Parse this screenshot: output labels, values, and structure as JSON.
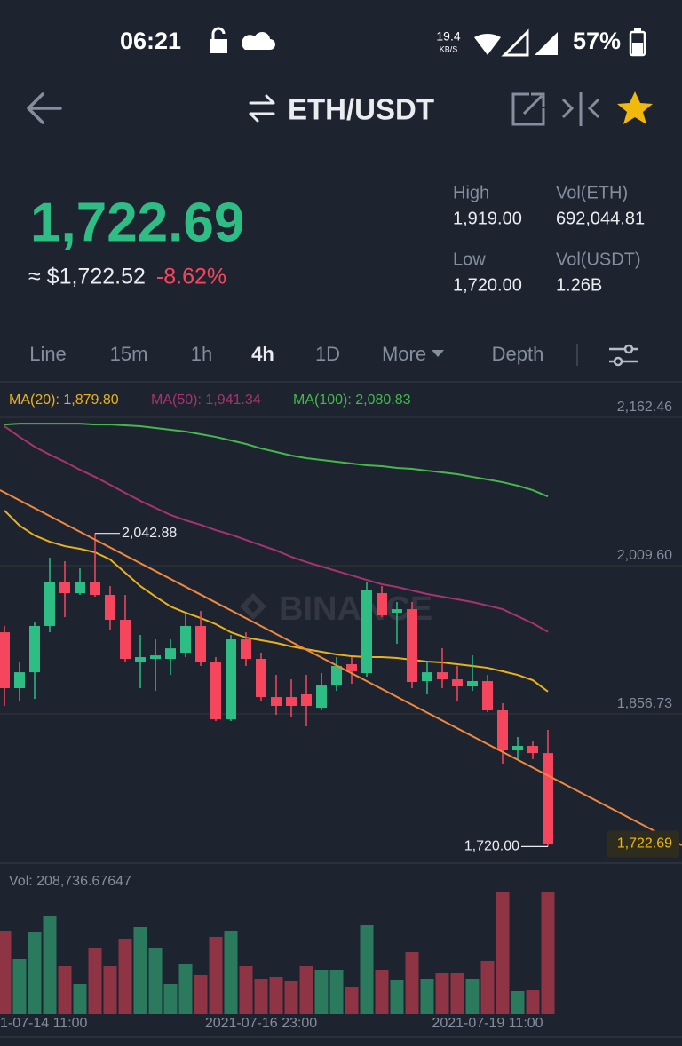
{
  "status_bar": {
    "time": "06:21",
    "net_speed": "19.4",
    "net_unit": "KB/S",
    "battery": "57%"
  },
  "header": {
    "pair": "ETH/USDT"
  },
  "ticker": {
    "last": "1,722.69",
    "usd": "≈ $1,722.52",
    "change": "-8.62%",
    "stats": [
      {
        "label": "High",
        "value": "1,919.00"
      },
      {
        "label": "Vol(ETH)",
        "value": "692,044.81"
      },
      {
        "label": "Low",
        "value": "1,720.00"
      },
      {
        "label": "Vol(USDT)",
        "value": "1.26B"
      }
    ]
  },
  "tabs": [
    "Line",
    "15m",
    "1h",
    "4h",
    "1D",
    "More",
    "Depth"
  ],
  "active_tab": 3,
  "chart_data": {
    "type": "candlestick",
    "watermark": "BINANCE",
    "up_color": "#2ebd85",
    "down_color": "#f6465d",
    "volume_up_color": "#2b7a5e",
    "volume_down_color": "#8f3445",
    "x": [
      null,
      null,
      "1-07-14 11:00",
      null,
      null,
      null,
      null,
      null,
      null,
      null,
      null,
      null,
      null,
      null,
      null,
      null,
      null,
      "2021-07-16 23:00",
      null,
      null,
      null,
      null,
      null,
      null,
      null,
      null,
      null,
      null,
      null,
      null,
      null,
      null,
      "2021-07-19 11:00",
      null,
      null,
      null,
      null
    ],
    "open": [
      1940.9,
      1883.3,
      1899.7,
      1947.4,
      1993.1,
      1981.2,
      1993.1,
      1979.4,
      1953.8,
      1910.7,
      1913.5,
      1913.5,
      1919.9,
      1947.4,
      1910.7,
      1851.2,
      1933.6,
      1913.5,
      1874.1,
      1874.1,
      1876.9,
      1863.1,
      1886.0,
      1908.0,
      1898.8,
      1981.2,
      1961.1,
      1964.7,
      1890.6,
      1899.7,
      1892.4,
      1885.1,
      1890.6,
      1860.4,
      1819.2,
      1823.8,
      1816.4
    ],
    "high": [
      1947.4,
      1910.7,
      1951.9,
      2017.8,
      2014.2,
      2006.8,
      2042.88,
      1988.5,
      1979.4,
      1938.2,
      1933.6,
      1933.6,
      1961.1,
      1962.9,
      1915.3,
      1938.2,
      1940.9,
      1919.9,
      1897.0,
      1892.4,
      1897.0,
      1898.8,
      1915.3,
      1915.3,
      1993.1,
      1988.5,
      1972.1,
      1972.1,
      1910.7,
      1924.4,
      1906.2,
      1917.1,
      1897.0,
      1867.7,
      1832.9,
      1828.3,
      1840.3
    ],
    "low": [
      1865.0,
      1869.5,
      1872.3,
      1940.9,
      1956.5,
      1979.4,
      1977.6,
      1942.8,
      1910.7,
      1883.3,
      1880.5,
      1897.0,
      1915.3,
      1906.2,
      1849.4,
      1849.4,
      1906.2,
      1869.5,
      1855.8,
      1853.1,
      1843.9,
      1860.4,
      1880.5,
      1887.8,
      1895.2,
      1956.5,
      1929.0,
      1883.3,
      1876.9,
      1883.3,
      1869.5,
      1880.5,
      1858.5,
      1805.5,
      1810.1,
      1810.1,
      1720.0
    ],
    "close": [
      1883.3,
      1899.7,
      1947.4,
      1993.1,
      1981.2,
      1993.1,
      1979.4,
      1953.8,
      1913.5,
      1915.3,
      1917.1,
      1924.4,
      1947.4,
      1910.7,
      1851.2,
      1933.6,
      1913.5,
      1874.1,
      1865.0,
      1865.0,
      1865.0,
      1886.0,
      1906.2,
      1900.7,
      1984.0,
      1958.3,
      1964.7,
      1889.7,
      1899.7,
      1892.4,
      1885.1,
      1890.6,
      1860.4,
      1819.2,
      1823.8,
      1816.4,
      1722.69
    ],
    "volume": [
      143218,
      94463,
      140171,
      167596,
      82274,
      51802,
      112746,
      82274,
      127982,
      149313,
      112746,
      51802,
      85322,
      67038,
      132553,
      143218,
      82274,
      60944,
      63991,
      56373,
      82274,
      76180,
      76180,
      45708,
      152360,
      76180,
      57897,
      106652,
      60944,
      70086,
      70086,
      60944,
      91416,
      208733,
      39614,
      41137,
      208736.67647
    ],
    "volume_label": "Vol: 208,736.67647",
    "volume_ylim": [
      0,
      239205
    ],
    "ylim": [
      1704.8,
      2199.1
    ],
    "yticks": [
      {
        "value": 2162.46,
        "label": "2,162.46"
      },
      {
        "value": 2009.6,
        "label": "2,009.60"
      },
      {
        "value": 1856.73,
        "label": "1,856.73"
      }
    ],
    "grid": true,
    "max_label": "2,042.88",
    "min_label": "1,720.00",
    "last_label": "1,722.69",
    "ma": [
      {
        "label": "MA(20): 1,879.80",
        "color": "#e9b21d",
        "values": [
          2066.4,
          2050.8,
          2040.7,
          2034.3,
          2029.7,
          2027.0,
          2023.3,
          2016.0,
          2002.3,
          1988.5,
          1977.6,
          1967.5,
          1961.1,
          1955.6,
          1949.2,
          1940.9,
          1935.4,
          1932.7,
          1930.0,
          1926.3,
          1923.5,
          1920.8,
          1918.1,
          1916.2,
          1915.3,
          1915.3,
          1914.4,
          1912.6,
          1910.7,
          1909.8,
          1908.0,
          1906.2,
          1904.3,
          1900.7,
          1897.0,
          1891.5,
          1879.8
        ]
      },
      {
        "label": "MA(50): 1,941.34",
        "color": "#a8336e",
        "values": [
          2153.3,
          2142.3,
          2132.2,
          2124.0,
          2116.7,
          2108.4,
          2101.1,
          2092.9,
          2084.6,
          2076.4,
          2069.1,
          2061.8,
          2056.3,
          2051.7,
          2046.2,
          2041.6,
          2036.1,
          2030.6,
          2025.2,
          2018.7,
          2013.3,
          2008.7,
          2004.1,
          1999.5,
          1994.9,
          1990.4,
          1987.6,
          1984.0,
          1980.3,
          1977.6,
          1974.8,
          1972.1,
          1968.4,
          1964.7,
          1957.4,
          1950.1,
          1941.34
        ]
      },
      {
        "label": "MA(100): 2,080.83",
        "color": "#45b84c",
        "values": [
          2155.1,
          2156.0,
          2156.0,
          2156.0,
          2156.0,
          2156.0,
          2155.1,
          2155.1,
          2154.2,
          2153.3,
          2151.5,
          2149.7,
          2147.8,
          2145.1,
          2142.3,
          2138.7,
          2135.0,
          2130.4,
          2126.8,
          2123.1,
          2120.4,
          2118.5,
          2116.7,
          2114.9,
          2113.0,
          2112.1,
          2110.3,
          2109.4,
          2107.5,
          2105.7,
          2103.9,
          2101.1,
          2098.4,
          2095.6,
          2092.0,
          2087.4,
          2080.83
        ]
      }
    ]
  }
}
